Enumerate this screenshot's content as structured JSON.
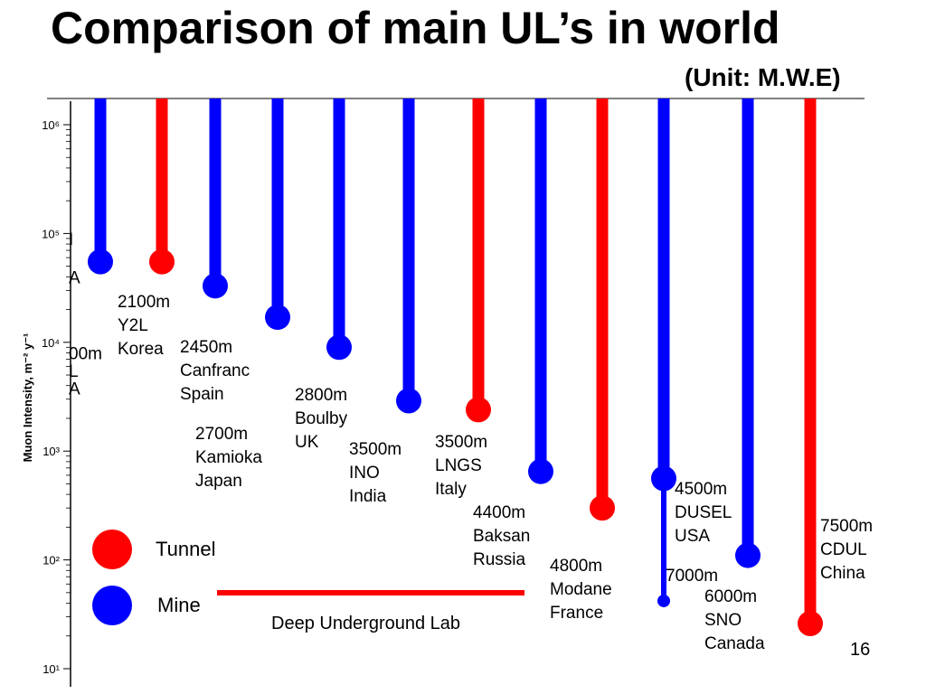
{
  "slide": {
    "title": "Comparison of main UL’s in world",
    "unit": "(Unit: M.W.E)",
    "slide_number": "16"
  },
  "chart_data": {
    "type": "scatter",
    "ylabel": "Muon Intensity, m⁻² y⁻¹",
    "yscale": "log",
    "ylim": [
      10,
      1000000
    ],
    "y_ticks": [
      {
        "value": 10,
        "label": "10¹"
      },
      {
        "value": 100,
        "label": "10²"
      },
      {
        "value": 1000,
        "label": "10³"
      },
      {
        "value": 10000,
        "label": "10⁴"
      },
      {
        "value": 100000,
        "label": "10⁵"
      },
      {
        "value": 1000000,
        "label": "10⁶"
      }
    ],
    "partial_labels": [
      {
        "text": "I",
        "y": 90000
      },
      {
        "text": "A",
        "y": 40000
      },
      {
        "text": "00m",
        "y": 8000
      },
      {
        "text": "L",
        "y": 5500
      },
      {
        "text": "A",
        "y": 3800
      }
    ],
    "labs": [
      {
        "depth": "",
        "name": "",
        "country": "",
        "type": "Mine",
        "intensity": 55000
      },
      {
        "depth": "2100m",
        "name": "Y2L",
        "country": "Korea",
        "type": "Tunnel",
        "intensity": 55000
      },
      {
        "depth": "2450m",
        "name": "Canfranc",
        "country": "Spain",
        "type": "Mine",
        "intensity": 33000
      },
      {
        "depth": "2700m",
        "name": "Kamioka",
        "country": "Japan",
        "type": "Mine",
        "intensity": 17000
      },
      {
        "depth": "2800m",
        "name": "Boulby",
        "country": "UK",
        "type": "Mine",
        "intensity": 9000
      },
      {
        "depth": "3500m",
        "name": "INO",
        "country": "India",
        "type": "Mine",
        "intensity": 2900
      },
      {
        "depth": "3500m",
        "name": "LNGS",
        "country": "Italy",
        "type": "Tunnel",
        "intensity": 2400
      },
      {
        "depth": "4400m",
        "name": "Baksan",
        "country": "Russia",
        "type": "Mine",
        "intensity": 650
      },
      {
        "depth": "4800m",
        "name": "Modane",
        "country": "France",
        "type": "Tunnel",
        "intensity": 300
      },
      {
        "depth": "4500m",
        "name": "DUSEL",
        "country": "USA",
        "type": "Mine",
        "intensity": 560
      },
      {
        "depth": "7000m",
        "name": "",
        "country": "",
        "type": "Mine",
        "intensity": 42
      },
      {
        "depth": "6000m",
        "name": "SNO",
        "country": "Canada",
        "type": "Mine",
        "intensity": 110
      },
      {
        "depth": "7500m",
        "name": "CDUL",
        "country": "China",
        "type": "Tunnel",
        "intensity": 26
      }
    ],
    "legend": [
      {
        "label": "Tunnel",
        "color": "#ff0000"
      },
      {
        "label": "Mine",
        "color": "#0000ff"
      }
    ],
    "annotation": "Deep Underground Lab",
    "colors": {
      "Tunnel": "#ff0000",
      "Mine": "#0000ff",
      "axis": "#000000"
    }
  }
}
